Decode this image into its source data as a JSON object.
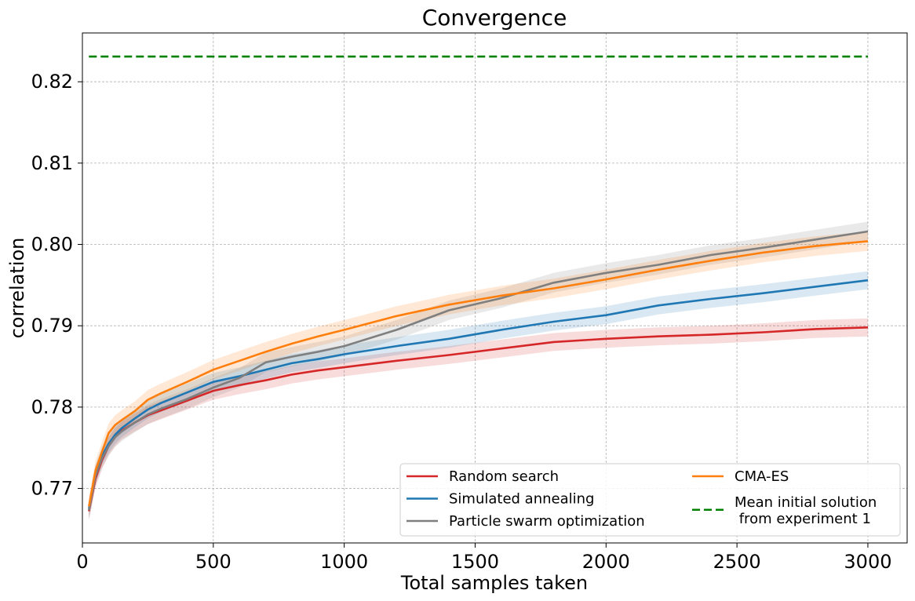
{
  "chart_data": {
    "type": "line",
    "title": "Convergence",
    "xlabel": "Total samples taken",
    "ylabel": "correlation",
    "xlim": [
      0,
      3150
    ],
    "ylim": [
      0.7633,
      0.826
    ],
    "xticks": [
      0,
      500,
      1000,
      1500,
      2000,
      2500,
      3000
    ],
    "yticks": [
      0.77,
      0.78,
      0.79,
      0.8,
      0.81,
      0.82
    ],
    "xtick_labels": [
      "0",
      "500",
      "1000",
      "1500",
      "2000",
      "2500",
      "3000"
    ],
    "ytick_labels": [
      "0.77",
      "0.78",
      "0.79",
      "0.80",
      "0.81",
      "0.82"
    ],
    "grid": true,
    "legend_position": "lower-right",
    "series": [
      {
        "name": "Random search",
        "color": "#d62728",
        "band": 0.0011,
        "x": [
          25,
          50,
          75,
          100,
          125,
          150,
          200,
          250,
          300,
          400,
          500,
          600,
          700,
          800,
          900,
          1000,
          1200,
          1400,
          1600,
          1800,
          2000,
          2200,
          2400,
          2600,
          2800,
          3000
        ],
        "y": [
          0.7672,
          0.7712,
          0.7735,
          0.7752,
          0.7763,
          0.7771,
          0.7781,
          0.779,
          0.7796,
          0.7808,
          0.782,
          0.7827,
          0.7833,
          0.784,
          0.7845,
          0.7849,
          0.7857,
          0.7864,
          0.7872,
          0.788,
          0.7884,
          0.7887,
          0.7889,
          0.7892,
          0.7896,
          0.7898
        ]
      },
      {
        "name": "Simulated annealing",
        "color": "#1f77b4",
        "band": 0.0011,
        "x": [
          25,
          50,
          75,
          100,
          125,
          150,
          200,
          250,
          300,
          400,
          500,
          600,
          700,
          800,
          900,
          1000,
          1200,
          1400,
          1600,
          1800,
          2000,
          2200,
          2400,
          2600,
          2800,
          3000
        ],
        "y": [
          0.7675,
          0.7718,
          0.774,
          0.7755,
          0.7766,
          0.7774,
          0.7786,
          0.7797,
          0.7805,
          0.7818,
          0.7831,
          0.7838,
          0.7846,
          0.7854,
          0.7859,
          0.7865,
          0.7875,
          0.7884,
          0.7895,
          0.7905,
          0.7913,
          0.7925,
          0.7933,
          0.794,
          0.7948,
          0.7956
        ]
      },
      {
        "name": "Particle swarm optimization",
        "color": "#7f7f7f",
        "band": 0.0012,
        "x": [
          25,
          50,
          75,
          100,
          125,
          150,
          200,
          250,
          300,
          400,
          500,
          600,
          700,
          800,
          900,
          1000,
          1200,
          1400,
          1600,
          1800,
          2000,
          2200,
          2400,
          2600,
          2800,
          3000
        ],
        "y": [
          0.7673,
          0.7715,
          0.7737,
          0.7752,
          0.7763,
          0.777,
          0.7781,
          0.7791,
          0.7798,
          0.781,
          0.7824,
          0.7836,
          0.7855,
          0.7862,
          0.7868,
          0.7875,
          0.7895,
          0.7919,
          0.7934,
          0.7953,
          0.7965,
          0.7975,
          0.7987,
          0.7996,
          0.8006,
          0.8016
        ]
      },
      {
        "name": "CMA-ES",
        "color": "#ff7f0e",
        "band": 0.0012,
        "x": [
          25,
          50,
          75,
          100,
          125,
          150,
          200,
          250,
          300,
          400,
          500,
          600,
          700,
          800,
          900,
          1000,
          1200,
          1400,
          1600,
          1800,
          2000,
          2200,
          2400,
          2600,
          2800,
          3000
        ],
        "y": [
          0.7678,
          0.7722,
          0.7745,
          0.7768,
          0.7778,
          0.7784,
          0.7795,
          0.7809,
          0.7817,
          0.7831,
          0.7846,
          0.7857,
          0.7868,
          0.7878,
          0.7887,
          0.7895,
          0.7912,
          0.7926,
          0.7937,
          0.7946,
          0.7957,
          0.7969,
          0.798,
          0.799,
          0.7998,
          0.8004
        ]
      },
      {
        "name": "Mean initial solution\n from experiment 1",
        "color": "#008000",
        "dashed": true,
        "x": [
          25,
          3000
        ],
        "y": [
          0.8231,
          0.8231
        ]
      }
    ]
  }
}
